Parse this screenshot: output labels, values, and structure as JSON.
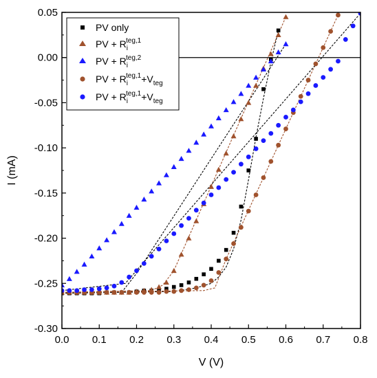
{
  "chart_data": {
    "type": "scatter",
    "xlabel": "V (V)",
    "ylabel": "I (mA)",
    "xlim": [
      0.0,
      0.8
    ],
    "ylim": [
      -0.3,
      0.05
    ],
    "xticks": [
      "0.0",
      "0.1",
      "0.2",
      "0.3",
      "0.4",
      "0.5",
      "0.6",
      "0.7",
      "0.8"
    ],
    "yticks": [
      "-0.30",
      "-0.25",
      "-0.20",
      "-0.15",
      "-0.10",
      "-0.05",
      "0.00",
      "0.05"
    ],
    "grid": false,
    "legend_position": "top-left",
    "zero_line": true,
    "series": [
      {
        "name": "PV only",
        "marker": "square",
        "color": "#000000",
        "x": [
          0.0,
          0.02,
          0.04,
          0.06,
          0.08,
          0.1,
          0.12,
          0.14,
          0.16,
          0.18,
          0.2,
          0.22,
          0.24,
          0.26,
          0.28,
          0.3,
          0.32,
          0.34,
          0.36,
          0.38,
          0.4,
          0.42,
          0.44,
          0.46,
          0.48,
          0.5,
          0.52,
          0.54,
          0.56,
          0.58
        ],
        "y": [
          -0.261,
          -0.261,
          -0.261,
          -0.261,
          -0.261,
          -0.261,
          -0.26,
          -0.26,
          -0.26,
          -0.26,
          -0.259,
          -0.258,
          -0.258,
          -0.257,
          -0.256,
          -0.254,
          -0.252,
          -0.249,
          -0.245,
          -0.24,
          -0.234,
          -0.225,
          -0.213,
          -0.194,
          -0.165,
          -0.125,
          -0.09,
          -0.035,
          -0.002,
          0.03
        ]
      },
      {
        "name": "PV + Ri teg,1",
        "marker": "triangle",
        "color": "#a0522d",
        "x": [
          0.0,
          0.02,
          0.04,
          0.06,
          0.08,
          0.1,
          0.12,
          0.14,
          0.16,
          0.18,
          0.2,
          0.22,
          0.24,
          0.26,
          0.28,
          0.3,
          0.32,
          0.34,
          0.36,
          0.38,
          0.4,
          0.42,
          0.44,
          0.46,
          0.48,
          0.5,
          0.52,
          0.54,
          0.56,
          0.58,
          0.6
        ],
        "y": [
          -0.26,
          -0.26,
          -0.26,
          -0.26,
          -0.26,
          -0.26,
          -0.26,
          -0.26,
          -0.26,
          -0.26,
          -0.259,
          -0.258,
          -0.257,
          -0.254,
          -0.249,
          -0.236,
          -0.218,
          -0.2,
          -0.181,
          -0.162,
          -0.143,
          -0.124,
          -0.106,
          -0.087,
          -0.068,
          -0.05,
          -0.031,
          -0.012,
          0.004,
          0.025,
          0.045
        ]
      },
      {
        "name": "PV + Ri teg,2",
        "marker": "triangle",
        "color": "#1a1aff",
        "x": [
          0.0,
          0.02,
          0.04,
          0.06,
          0.08,
          0.1,
          0.12,
          0.14,
          0.16,
          0.18,
          0.2,
          0.22,
          0.24,
          0.26,
          0.28,
          0.3,
          0.32,
          0.34,
          0.36,
          0.38,
          0.4,
          0.42,
          0.44,
          0.46,
          0.48,
          0.5,
          0.52,
          0.54,
          0.56,
          0.58,
          0.6
        ],
        "y": [
          -0.252,
          -0.245,
          -0.237,
          -0.229,
          -0.22,
          -0.211,
          -0.202,
          -0.193,
          -0.184,
          -0.175,
          -0.166,
          -0.157,
          -0.148,
          -0.139,
          -0.13,
          -0.121,
          -0.112,
          -0.103,
          -0.094,
          -0.085,
          -0.076,
          -0.067,
          -0.058,
          -0.049,
          -0.04,
          -0.031,
          -0.022,
          -0.013,
          -0.004,
          0.006,
          0.015
        ]
      },
      {
        "name": "PV + Ri teg,1+Vteg",
        "marker": "circle",
        "color": "#a0522d",
        "x": [
          0.0,
          0.02,
          0.04,
          0.06,
          0.08,
          0.1,
          0.12,
          0.14,
          0.16,
          0.18,
          0.2,
          0.22,
          0.24,
          0.26,
          0.28,
          0.3,
          0.32,
          0.34,
          0.36,
          0.38,
          0.4,
          0.42,
          0.44,
          0.46,
          0.48,
          0.5,
          0.52,
          0.54,
          0.56,
          0.58,
          0.6,
          0.62,
          0.64,
          0.66,
          0.68,
          0.7,
          0.72,
          0.74
        ],
        "y": [
          -0.26,
          -0.26,
          -0.26,
          -0.26,
          -0.26,
          -0.26,
          -0.26,
          -0.26,
          -0.26,
          -0.26,
          -0.26,
          -0.26,
          -0.26,
          -0.26,
          -0.259,
          -0.259,
          -0.258,
          -0.257,
          -0.255,
          -0.252,
          -0.247,
          -0.238,
          -0.223,
          -0.206,
          -0.188,
          -0.17,
          -0.152,
          -0.133,
          -0.115,
          -0.097,
          -0.079,
          -0.061,
          -0.043,
          -0.025,
          -0.007,
          0.011,
          0.029,
          0.047
        ]
      },
      {
        "name": "PV + Ri teg,1+Vteg",
        "marker": "circle",
        "color": "#1a1aff",
        "x": [
          0.0,
          0.02,
          0.04,
          0.06,
          0.08,
          0.1,
          0.12,
          0.14,
          0.16,
          0.18,
          0.2,
          0.22,
          0.24,
          0.26,
          0.28,
          0.3,
          0.32,
          0.34,
          0.36,
          0.38,
          0.4,
          0.42,
          0.44,
          0.46,
          0.48,
          0.5,
          0.52,
          0.54,
          0.56,
          0.58,
          0.6,
          0.62,
          0.64,
          0.66,
          0.68,
          0.7,
          0.72,
          0.74,
          0.76,
          0.78,
          0.8
        ],
        "y": [
          -0.258,
          -0.258,
          -0.258,
          -0.257,
          -0.257,
          -0.256,
          -0.255,
          -0.253,
          -0.249,
          -0.243,
          -0.236,
          -0.228,
          -0.22,
          -0.212,
          -0.203,
          -0.195,
          -0.186,
          -0.178,
          -0.169,
          -0.161,
          -0.152,
          -0.144,
          -0.135,
          -0.127,
          -0.118,
          -0.11,
          -0.101,
          -0.092,
          -0.084,
          -0.075,
          -0.066,
          -0.058,
          -0.049,
          -0.04,
          -0.031,
          -0.022,
          -0.013,
          -0.004,
          0.02,
          0.035,
          0.049
        ]
      }
    ],
    "fit_lines": [
      {
        "color": "#000000",
        "x": [
          0.0,
          0.3,
          0.36,
          0.4,
          0.42,
          0.44,
          0.46,
          0.48,
          0.5,
          0.52,
          0.54,
          0.56,
          0.58
        ],
        "y": [
          -0.261,
          -0.259,
          -0.255,
          -0.25,
          -0.243,
          -0.232,
          -0.212,
          -0.18,
          -0.135,
          -0.088,
          -0.045,
          -0.005,
          0.03
        ]
      },
      {
        "color": "#a0522d",
        "x": [
          0.0,
          0.24,
          0.27,
          0.3,
          0.6
        ],
        "y": [
          -0.26,
          -0.258,
          -0.252,
          -0.236,
          0.045
        ]
      },
      {
        "color": "#000000",
        "x": [
          0.16,
          0.2,
          0.6
        ],
        "y": [
          -0.26,
          -0.239,
          0.015
        ]
      },
      {
        "color": "#a0522d",
        "x": [
          0.0,
          0.38,
          0.41,
          0.44,
          0.74
        ],
        "y": [
          -0.26,
          -0.258,
          -0.255,
          -0.223,
          0.047
        ]
      },
      {
        "color": "#000000",
        "x": [
          0.0,
          0.17,
          0.8
        ],
        "y": [
          -0.258,
          -0.25,
          0.049
        ]
      }
    ]
  }
}
